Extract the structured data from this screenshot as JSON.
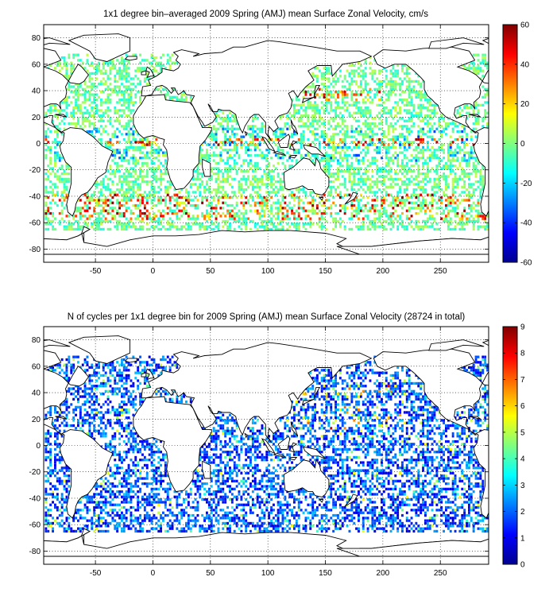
{
  "chart_data": [
    {
      "type": "heatmap",
      "title": "1x1 degree bin–averaged 2009 Spring (AMJ) mean Surface Zonal Velocity, cm/s",
      "x_ticks": [
        "-50",
        "0",
        "50",
        "100",
        "150",
        "200",
        "250"
      ],
      "y_ticks": [
        "80",
        "60",
        "40",
        "20",
        "0",
        "-20",
        "-40",
        "-60",
        "-80"
      ],
      "xlim": [
        -95,
        292
      ],
      "ylim": [
        -90,
        90
      ],
      "grid": true,
      "colorbar": {
        "range": [
          -60,
          60
        ],
        "ticks": [
          "60",
          "40",
          "20",
          "0",
          "-20",
          "-40",
          "-60"
        ],
        "colormap": "jet"
      },
      "background": "coastlines (world map)"
    },
    {
      "type": "heatmap",
      "title": "N of cycles per 1x1 degree bin for 2009 Spring (AMJ) mean Surface Zonal Velocity (28724 in total)",
      "x_ticks": [
        "-50",
        "0",
        "50",
        "100",
        "150",
        "200",
        "250"
      ],
      "y_ticks": [
        "80",
        "60",
        "40",
        "20",
        "0",
        "-20",
        "-40",
        "-60",
        "-80"
      ],
      "xlim": [
        -95,
        292
      ],
      "ylim": [
        -90,
        90
      ],
      "grid": true,
      "colorbar": {
        "range": [
          0,
          9
        ],
        "ticks": [
          "9",
          "8",
          "7",
          "6",
          "5",
          "4",
          "3",
          "2",
          "1",
          "0"
        ],
        "colormap": "jet"
      },
      "background": "coastlines (world map)"
    }
  ]
}
